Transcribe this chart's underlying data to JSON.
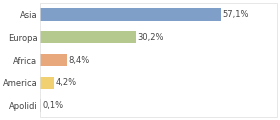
{
  "categories": [
    "Asia",
    "Europa",
    "Africa",
    "America",
    "Apolidi"
  ],
  "values": [
    57.1,
    30.2,
    8.4,
    4.2,
    0.1
  ],
  "labels": [
    "57,1%",
    "30,2%",
    "8,4%",
    "4,2%",
    "0,1%"
  ],
  "bar_colors": [
    "#7f9fc9",
    "#b5c98e",
    "#e8a87c",
    "#f0d070",
    "#c8c8c8"
  ],
  "background_color": "#ffffff",
  "label_fontsize": 6.0,
  "tick_fontsize": 6.0,
  "xlim": 75
}
